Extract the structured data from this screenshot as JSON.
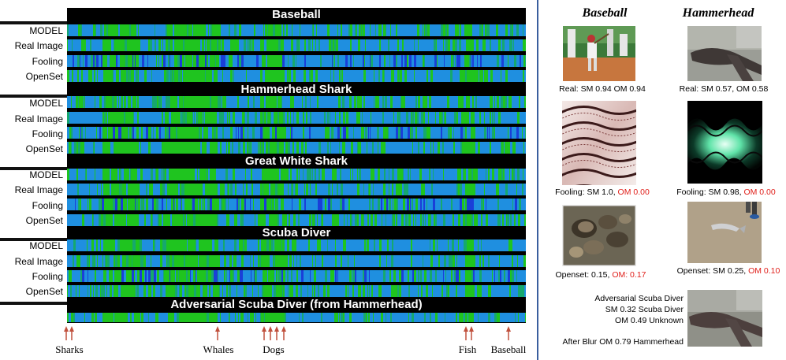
{
  "heatmap": {
    "row_labels": [
      "MODEL",
      "Real Image",
      "Fooling",
      "OpenSet"
    ],
    "groups": [
      {
        "title": "Baseball"
      },
      {
        "title": "Hammerhead Shark"
      },
      {
        "title": "Great White Shark"
      },
      {
        "title": "Scuba Diver"
      },
      {
        "title": "Adversarial Scuba Diver (from Hammerhead)"
      }
    ],
    "axis_labels": [
      "Sharks",
      "Whales",
      "Dogs",
      "Fish",
      "Baseball"
    ],
    "colors": {
      "base": "#1f8fe0",
      "high": "#1fc41f",
      "mid": "#16a86e",
      "low": "#1a3fd8",
      "title_bar": "#000000"
    }
  },
  "examples": {
    "col_titles": [
      "Baseball",
      "Hammerhead"
    ],
    "captions": [
      {
        "prefix": "Real: SM 0.94  OM 0.94",
        "red": ""
      },
      {
        "prefix": "Real: SM 0.57, OM 0.58",
        "red": ""
      },
      {
        "prefix": "Fooling: SM 1.0, ",
        "red": "OM 0.00"
      },
      {
        "prefix": "Fooling: SM 0.98, ",
        "red": "OM 0.00"
      },
      {
        "prefix": "Openset: 0.15,  ",
        "red": "OM: 0.17"
      },
      {
        "prefix": "Openset: SM 0.25, ",
        "red": "OM 0.10"
      }
    ],
    "adversarial": {
      "line1": "Adversarial Scuba Diver",
      "line2": "SM 0.32 Scuba Diver",
      "line3": "OM 0.49 Unknown",
      "line4": "After Blur OM 0.79 Hammerhead"
    }
  }
}
